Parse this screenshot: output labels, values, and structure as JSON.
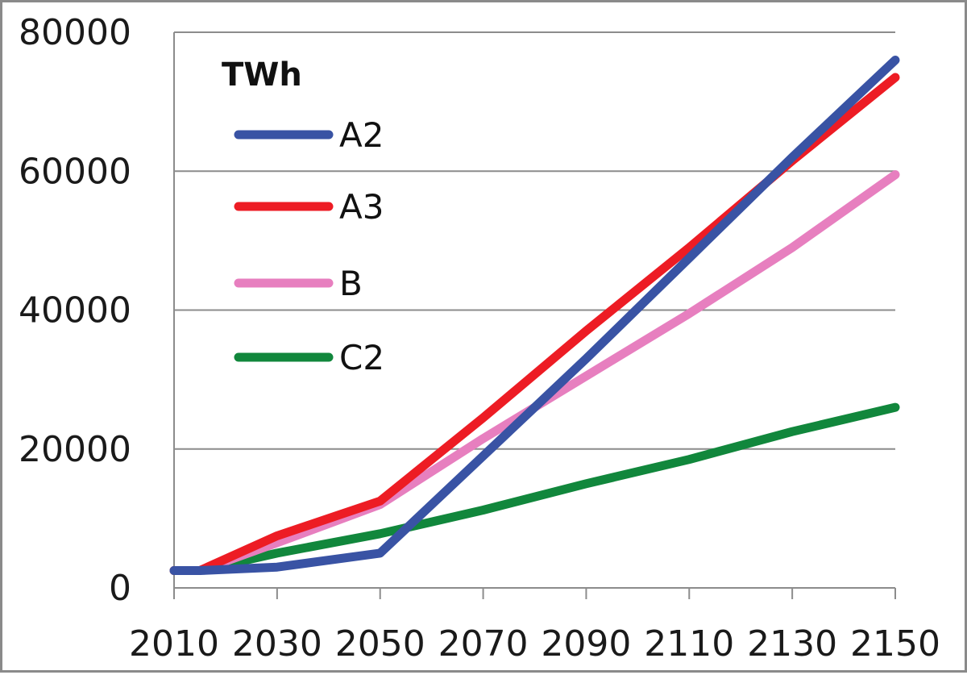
{
  "chart_data": {
    "type": "line",
    "title": "",
    "xlabel": "",
    "ylabel": "",
    "unit_label": "TWh",
    "x": [
      2010,
      2015,
      2030,
      2050,
      2070,
      2090,
      2110,
      2130,
      2150
    ],
    "xticks": [
      "2010",
      "2030",
      "2050",
      "2070",
      "2090",
      "2110",
      "2130",
      "2150"
    ],
    "yticks": [
      "0",
      "20000",
      "40000",
      "60000",
      "80000"
    ],
    "xlim": [
      2010,
      2150
    ],
    "ylim": [
      0,
      80000
    ],
    "grid": true,
    "legend_position": "top-left",
    "series": [
      {
        "name": "A2",
        "color": "#3953a4",
        "points": [
          [
            2010,
            2500
          ],
          [
            2015,
            2500
          ],
          [
            2030,
            3000
          ],
          [
            2050,
            5000
          ],
          [
            2070,
            19000
          ],
          [
            2090,
            33000
          ],
          [
            2110,
            47500
          ],
          [
            2130,
            62000
          ],
          [
            2150,
            76000
          ]
        ]
      },
      {
        "name": "A3",
        "color": "#ed1c24",
        "points": [
          [
            2010,
            2500
          ],
          [
            2015,
            2500
          ],
          [
            2030,
            7500
          ],
          [
            2050,
            12500
          ],
          [
            2070,
            24500
          ],
          [
            2090,
            37000
          ],
          [
            2110,
            49000
          ],
          [
            2130,
            61500
          ],
          [
            2150,
            73500
          ]
        ]
      },
      {
        "name": "B",
        "color": "#e77fbf",
        "points": [
          [
            2010,
            2500
          ],
          [
            2015,
            2500
          ],
          [
            2030,
            6500
          ],
          [
            2050,
            12000
          ],
          [
            2070,
            21500
          ],
          [
            2090,
            30500
          ],
          [
            2110,
            39500
          ],
          [
            2130,
            49000
          ],
          [
            2150,
            59500
          ]
        ]
      },
      {
        "name": "C2",
        "color": "#11873c",
        "points": [
          [
            2010,
            2500
          ],
          [
            2015,
            2500
          ],
          [
            2030,
            5000
          ],
          [
            2050,
            7800
          ],
          [
            2070,
            11200
          ],
          [
            2090,
            15000
          ],
          [
            2110,
            18500
          ],
          [
            2130,
            22500
          ],
          [
            2150,
            26000
          ]
        ]
      }
    ]
  }
}
